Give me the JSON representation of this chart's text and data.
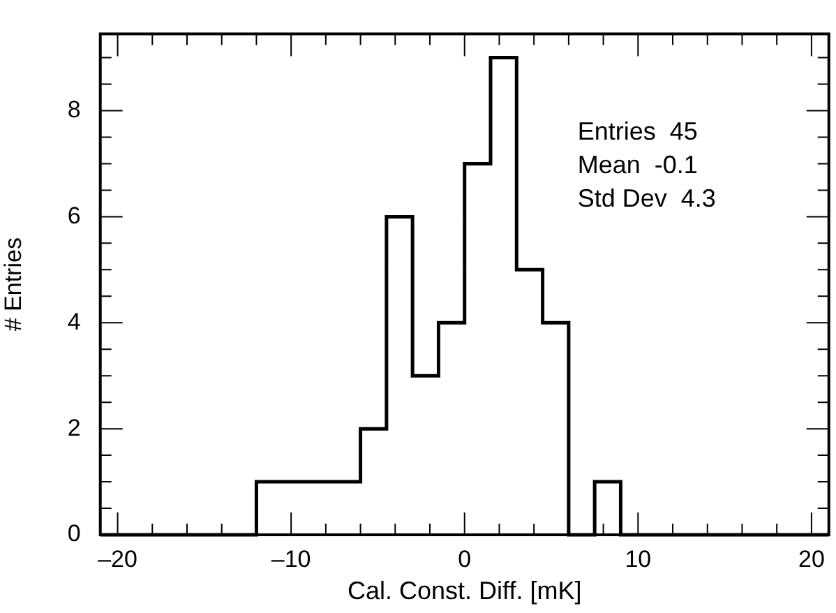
{
  "chart_data": {
    "type": "histogram",
    "xlabel": "Cal. Const. Diff. [mK]",
    "ylabel": "# Entries",
    "bins": [
      -21,
      -19.5,
      -18,
      -16.5,
      -15,
      -13.5,
      -12,
      -10.5,
      -9,
      -7.5,
      -6,
      -4.5,
      -3,
      -1.5,
      0,
      1.5,
      3,
      4.5,
      6,
      7.5,
      9,
      10.5,
      12,
      13.5,
      15,
      16.5,
      18,
      19.5,
      21
    ],
    "values": [
      0,
      0,
      0,
      0,
      0,
      0,
      1,
      1,
      1,
      1,
      2,
      6,
      3,
      4,
      7,
      9,
      5,
      4,
      0,
      1,
      0,
      0,
      0,
      0,
      0,
      0,
      0,
      0
    ],
    "color": "#000000",
    "xlim": [
      -21,
      21
    ],
    "ylim": [
      0,
      9.45
    ],
    "xticks": [
      {
        "value": -20,
        "label": "–20"
      },
      {
        "value": -18,
        "label": null
      },
      {
        "value": -16,
        "label": null
      },
      {
        "value": -14,
        "label": null
      },
      {
        "value": -12,
        "label": null
      },
      {
        "value": -10,
        "label": "–10"
      },
      {
        "value": -8,
        "label": null
      },
      {
        "value": -6,
        "label": null
      },
      {
        "value": -4,
        "label": null
      },
      {
        "value": -2,
        "label": null
      },
      0,
      {
        "value": 2,
        "label": null
      },
      {
        "value": 4,
        "label": null
      },
      {
        "value": 6,
        "label": null
      },
      {
        "value": 8,
        "label": null
      },
      10,
      {
        "value": 12,
        "label": null
      },
      {
        "value": 14,
        "label": null
      },
      {
        "value": 16,
        "label": null
      },
      {
        "value": 18,
        "label": null
      },
      20
    ],
    "yticks": [
      0,
      {
        "value": 0.5,
        "label": null
      },
      {
        "value": 1,
        "label": null
      },
      {
        "value": 1.5,
        "label": null
      },
      2,
      {
        "value": 2.5,
        "label": null
      },
      {
        "value": 3,
        "label": null
      },
      {
        "value": 3.5,
        "label": null
      },
      4,
      {
        "value": 4.5,
        "label": null
      },
      {
        "value": 5,
        "label": null
      },
      {
        "value": 5.5,
        "label": null
      },
      6,
      {
        "value": 6.5,
        "label": null
      },
      {
        "value": 7,
        "label": null
      },
      {
        "value": 7.5,
        "label": null
      },
      8,
      {
        "value": 8.5,
        "label": null
      },
      {
        "value": 9,
        "label": null
      }
    ],
    "annotations": [
      "Entries  45",
      "Mean  -0.1",
      "Std Dev  4.3"
    ],
    "grid": false,
    "legend": false
  }
}
